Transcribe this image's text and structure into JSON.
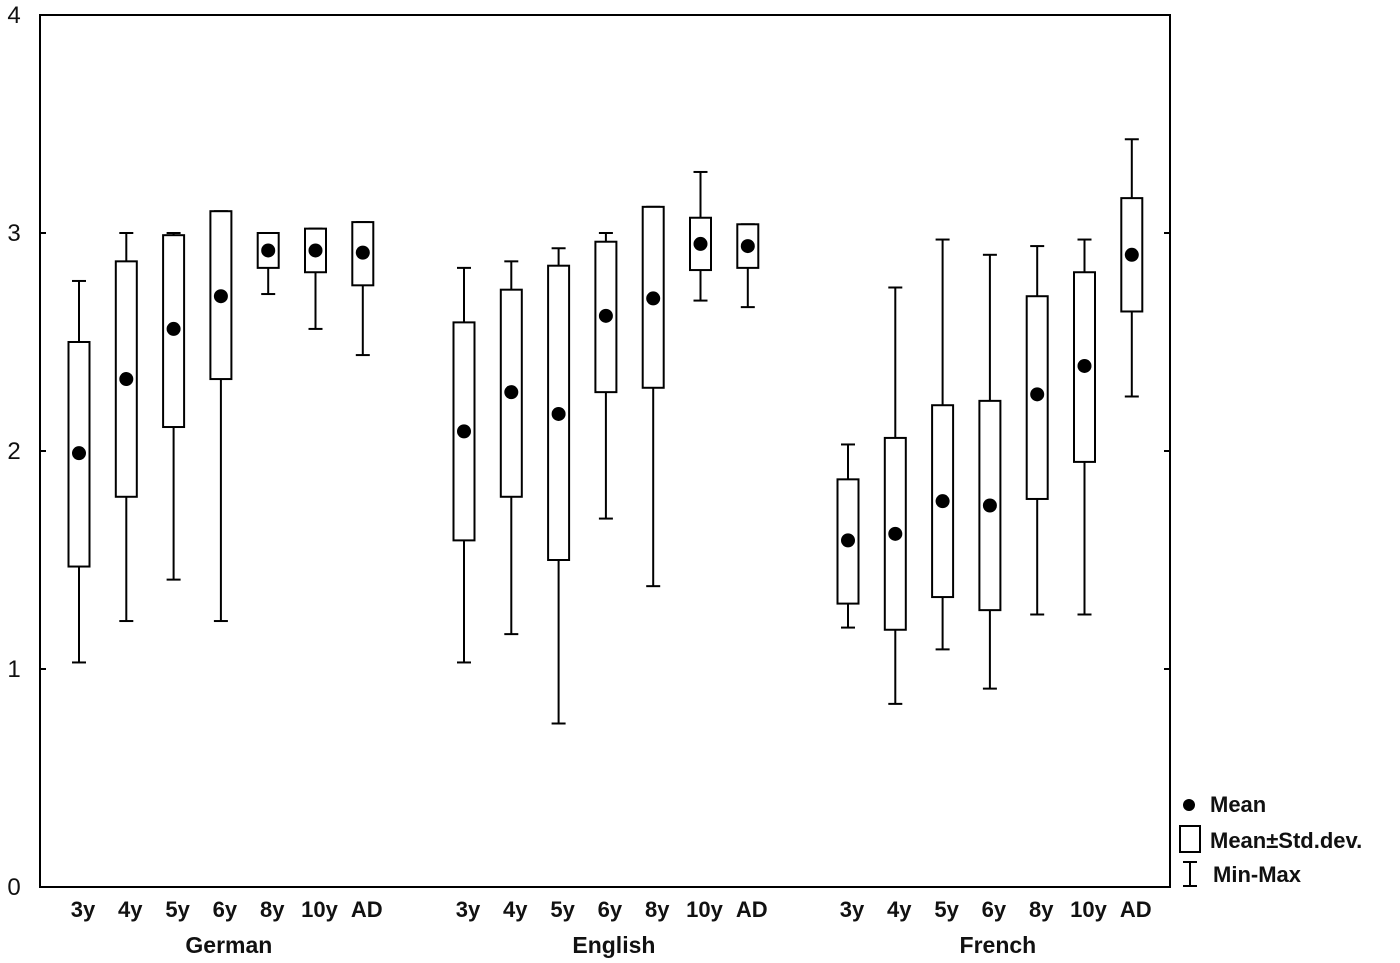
{
  "chart_data": {
    "type": "box",
    "y_range": [
      0,
      4
    ],
    "y_ticks": [
      "0",
      "1",
      "2",
      "3",
      "4"
    ],
    "grid": false,
    "legend_position": "bottom-right",
    "legend": [
      "Mean",
      "Mean±Std.dev.",
      "Min-Max"
    ],
    "groups": [
      {
        "label": "German",
        "items": [
          {
            "category": "3y",
            "min": 1.03,
            "mean_minus_sd": 1.47,
            "mean": 1.99,
            "mean_plus_sd": 2.5,
            "max": 2.78
          },
          {
            "category": "4y",
            "min": 1.22,
            "mean_minus_sd": 1.79,
            "mean": 2.33,
            "mean_plus_sd": 2.87,
            "max": 3.0
          },
          {
            "category": "5y",
            "min": 1.41,
            "mean_minus_sd": 2.11,
            "mean": 2.56,
            "mean_plus_sd": 2.99,
            "max": 3.0
          },
          {
            "category": "6y",
            "min": 1.22,
            "mean_minus_sd": 2.33,
            "mean": 2.71,
            "mean_plus_sd": 3.1,
            "max": 3.1
          },
          {
            "category": "8y",
            "min": 2.72,
            "mean_minus_sd": 2.84,
            "mean": 2.92,
            "mean_plus_sd": 3.0,
            "max": 3.0
          },
          {
            "category": "10y",
            "min": 2.56,
            "mean_minus_sd": 2.82,
            "mean": 2.92,
            "mean_plus_sd": 3.02,
            "max": 3.02
          },
          {
            "category": "AD",
            "min": 2.44,
            "mean_minus_sd": 2.76,
            "mean": 2.91,
            "mean_plus_sd": 3.05,
            "max": 3.05
          }
        ]
      },
      {
        "label": "English",
        "items": [
          {
            "category": "3y",
            "min": 1.03,
            "mean_minus_sd": 1.59,
            "mean": 2.09,
            "mean_plus_sd": 2.59,
            "max": 2.84
          },
          {
            "category": "4y",
            "min": 1.16,
            "mean_minus_sd": 1.79,
            "mean": 2.27,
            "mean_plus_sd": 2.74,
            "max": 2.87
          },
          {
            "category": "5y",
            "min": 0.75,
            "mean_minus_sd": 1.5,
            "mean": 2.17,
            "mean_plus_sd": 2.85,
            "max": 2.93
          },
          {
            "category": "6y",
            "min": 1.69,
            "mean_minus_sd": 2.27,
            "mean": 2.62,
            "mean_plus_sd": 2.96,
            "max": 3.0
          },
          {
            "category": "8y",
            "min": 1.38,
            "mean_minus_sd": 2.29,
            "mean": 2.7,
            "mean_plus_sd": 3.12,
            "max": 3.12
          },
          {
            "category": "10y",
            "min": 2.69,
            "mean_minus_sd": 2.83,
            "mean": 2.95,
            "mean_plus_sd": 3.07,
            "max": 3.28
          },
          {
            "category": "AD",
            "min": 2.66,
            "mean_minus_sd": 2.84,
            "mean": 2.94,
            "mean_plus_sd": 3.04,
            "max": 3.04
          }
        ]
      },
      {
        "label": "French",
        "items": [
          {
            "category": "3y",
            "min": 1.19,
            "mean_minus_sd": 1.3,
            "mean": 1.59,
            "mean_plus_sd": 1.87,
            "max": 2.03
          },
          {
            "category": "4y",
            "min": 0.84,
            "mean_minus_sd": 1.18,
            "mean": 1.62,
            "mean_plus_sd": 2.06,
            "max": 2.75
          },
          {
            "category": "5y",
            "min": 1.09,
            "mean_minus_sd": 1.33,
            "mean": 1.77,
            "mean_plus_sd": 2.21,
            "max": 2.97
          },
          {
            "category": "6y",
            "min": 0.91,
            "mean_minus_sd": 1.27,
            "mean": 1.75,
            "mean_plus_sd": 2.23,
            "max": 2.9
          },
          {
            "category": "8y",
            "min": 1.25,
            "mean_minus_sd": 1.78,
            "mean": 2.26,
            "mean_plus_sd": 2.71,
            "max": 2.94
          },
          {
            "category": "10y",
            "min": 1.25,
            "mean_minus_sd": 1.95,
            "mean": 2.39,
            "mean_plus_sd": 2.82,
            "max": 2.97
          },
          {
            "category": "AD",
            "min": 2.25,
            "mean_minus_sd": 2.64,
            "mean": 2.9,
            "mean_plus_sd": 3.16,
            "max": 3.43
          }
        ]
      }
    ]
  }
}
